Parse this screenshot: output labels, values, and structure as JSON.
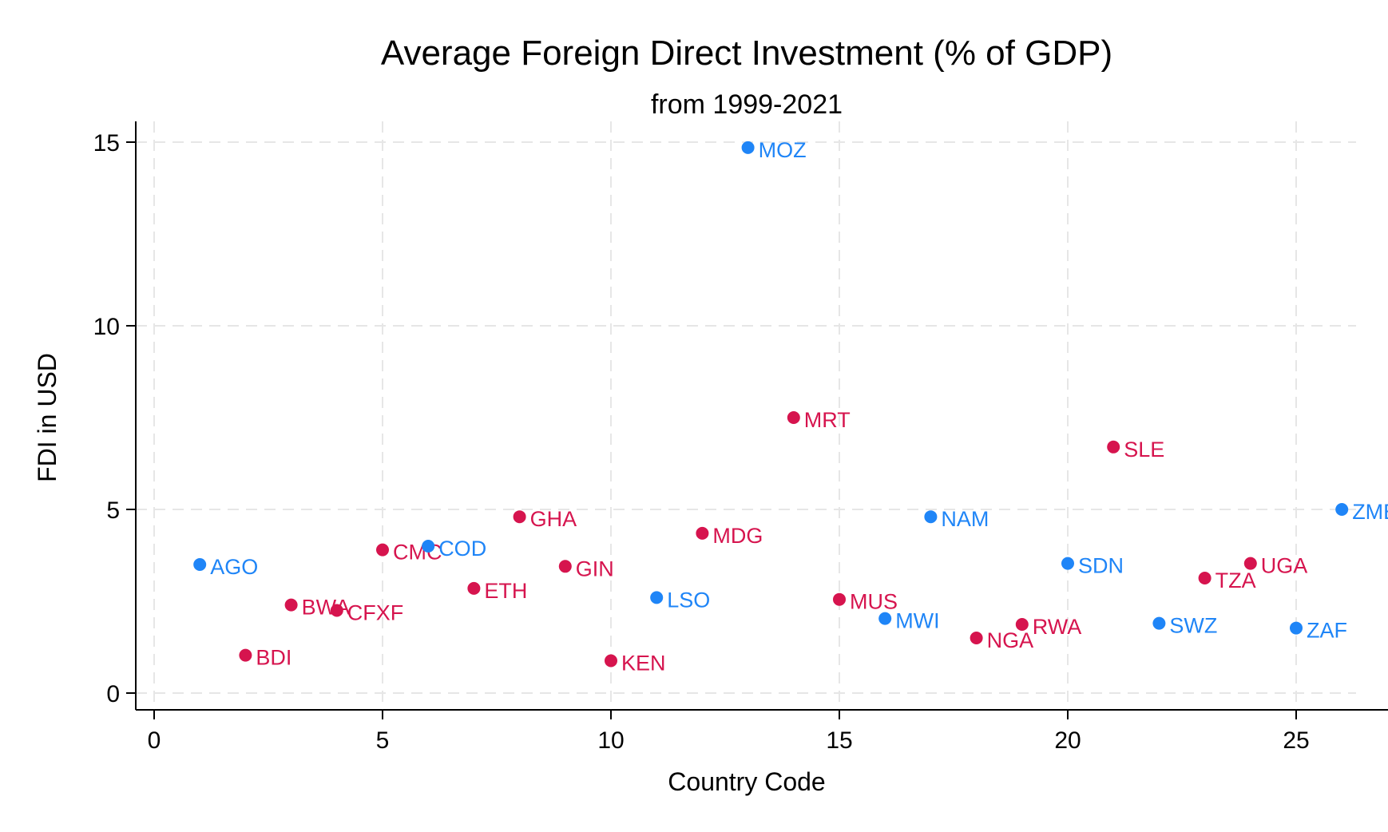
{
  "chart_data": {
    "type": "scatter",
    "title": "Average Foreign Direct Investment (% of GDP)",
    "subtitle": "from 1999-2021",
    "xlabel": "Country Code",
    "ylabel": "FDI in USD",
    "xlim": [
      -0.4,
      26.4
    ],
    "ylim": [
      -0.45,
      15.5
    ],
    "xticks": [
      0,
      5,
      10,
      15,
      20,
      25
    ],
    "yticks": [
      0,
      5,
      10,
      15
    ],
    "grid": true,
    "legend": "none",
    "colors": {
      "blue": "#1f85f7",
      "red": "#d6144e"
    },
    "points": [
      {
        "x": 1,
        "y": 3.5,
        "label": "AGO",
        "color": "blue"
      },
      {
        "x": 2,
        "y": 1.03,
        "label": "BDI",
        "color": "red"
      },
      {
        "x": 3,
        "y": 2.4,
        "label": "BWA",
        "color": "red"
      },
      {
        "x": 4,
        "y": 2.25,
        "label": "CFXF",
        "color": "red"
      },
      {
        "x": 5,
        "y": 3.9,
        "label": "CMC",
        "color": "red"
      },
      {
        "x": 6,
        "y": 4.0,
        "label": "COD",
        "color": "blue"
      },
      {
        "x": 7,
        "y": 2.85,
        "label": "ETH",
        "color": "red"
      },
      {
        "x": 8,
        "y": 4.8,
        "label": "GHA",
        "color": "red"
      },
      {
        "x": 9,
        "y": 3.45,
        "label": "GIN",
        "color": "red"
      },
      {
        "x": 10,
        "y": 0.88,
        "label": "KEN",
        "color": "red"
      },
      {
        "x": 11,
        "y": 2.6,
        "label": "LSO",
        "color": "blue"
      },
      {
        "x": 12,
        "y": 4.35,
        "label": "MDG",
        "color": "red"
      },
      {
        "x": 13,
        "y": 14.85,
        "label": "MOZ",
        "color": "blue"
      },
      {
        "x": 14,
        "y": 7.5,
        "label": "MRT",
        "color": "red"
      },
      {
        "x": 15,
        "y": 2.55,
        "label": "MUS",
        "color": "red"
      },
      {
        "x": 16,
        "y": 2.03,
        "label": "MWI",
        "color": "blue"
      },
      {
        "x": 17,
        "y": 4.8,
        "label": "NAM",
        "color": "blue"
      },
      {
        "x": 18,
        "y": 1.5,
        "label": "NGA",
        "color": "red"
      },
      {
        "x": 19,
        "y": 1.87,
        "label": "RWA",
        "color": "red"
      },
      {
        "x": 20,
        "y": 3.53,
        "label": "SDN",
        "color": "blue"
      },
      {
        "x": 21,
        "y": 6.7,
        "label": "SLE",
        "color": "red"
      },
      {
        "x": 22,
        "y": 1.9,
        "label": "SWZ",
        "color": "blue"
      },
      {
        "x": 23,
        "y": 3.13,
        "label": "TZA",
        "color": "red"
      },
      {
        "x": 24,
        "y": 3.53,
        "label": "UGA",
        "color": "red"
      },
      {
        "x": 25,
        "y": 1.77,
        "label": "ZAF",
        "color": "blue"
      },
      {
        "x": 26,
        "y": 5.0,
        "label": "ZMB",
        "color": "blue"
      }
    ]
  }
}
